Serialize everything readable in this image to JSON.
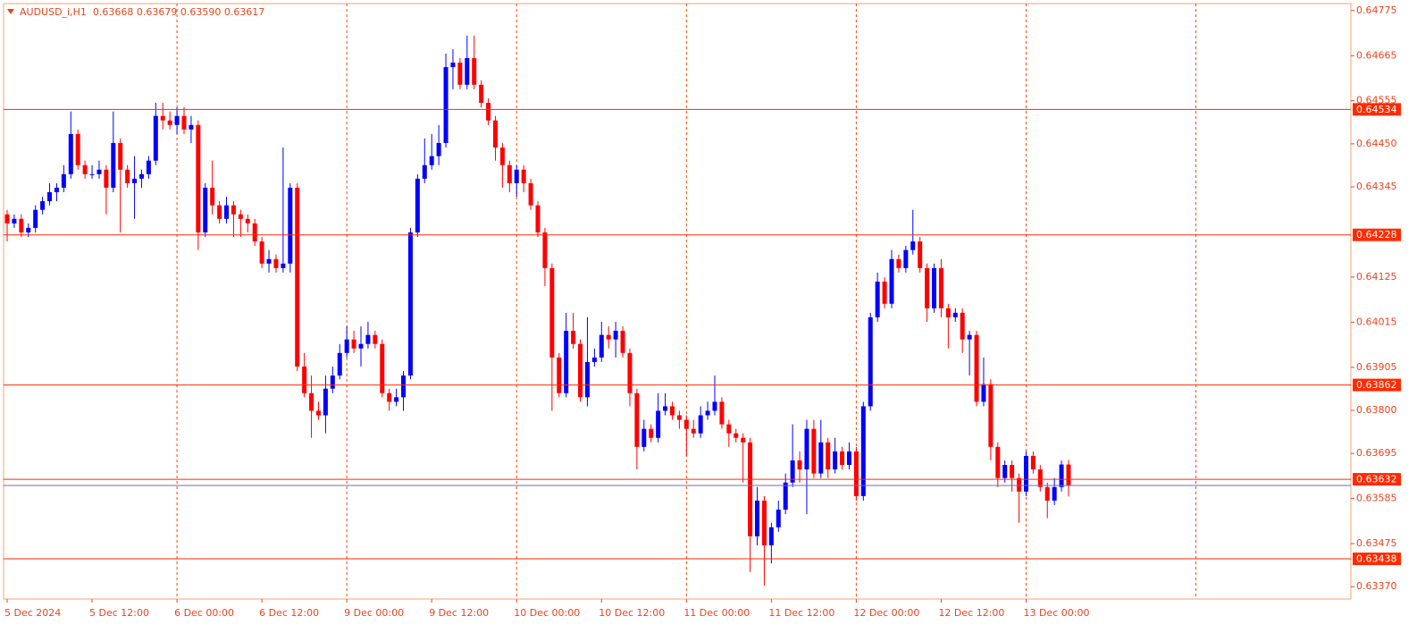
{
  "chart_data": {
    "type": "candlestick",
    "title": "AUDUSD_i,H1  0.63668 0.63679 0.63590 0.63617",
    "up_color": "#0000ff",
    "down_color": "#ff0000",
    "grid": true,
    "grid_color": "#ff4500",
    "level_color": "#ff2a00",
    "ylim": [
      0.6334,
      0.64792
    ],
    "yticks": [
      0.64775,
      0.64665,
      0.64555,
      {
        "value": 0.6445,
        "label": "0.64450"
      },
      0.64345,
      0.64125,
      0.64015,
      0.63905,
      {
        "value": 0.638,
        "label": "0.63800"
      },
      0.63695,
      0.63585,
      0.63475,
      {
        "value": 0.6337,
        "label": "0.63370"
      }
    ],
    "levels": [
      0.64534,
      0.64228,
      0.63862,
      0.63632,
      0.63438
    ],
    "categories": [
      "5 Dec 2024",
      null,
      null,
      null,
      null,
      null,
      null,
      null,
      null,
      null,
      null,
      null,
      "5 Dec 12:00",
      null,
      null,
      null,
      null,
      null,
      null,
      null,
      null,
      null,
      null,
      null,
      "6 Dec 00:00",
      null,
      null,
      null,
      null,
      null,
      null,
      null,
      null,
      null,
      null,
      null,
      "6 Dec 12:00",
      null,
      null,
      null,
      null,
      null,
      null,
      null,
      null,
      null,
      null,
      null,
      "9 Dec 00:00",
      null,
      null,
      null,
      null,
      null,
      null,
      null,
      null,
      null,
      null,
      null,
      "9 Dec 12:00",
      null,
      null,
      null,
      null,
      null,
      null,
      null,
      null,
      null,
      null,
      null,
      "10 Dec 00:00",
      null,
      null,
      null,
      null,
      null,
      null,
      null,
      null,
      null,
      null,
      null,
      "10 Dec 12:00",
      null,
      null,
      null,
      null,
      null,
      null,
      null,
      null,
      null,
      null,
      null,
      "11 Dec 00:00",
      null,
      null,
      null,
      null,
      null,
      null,
      null,
      null,
      null,
      null,
      null,
      "11 Dec 12:00",
      null,
      null,
      null,
      null,
      null,
      null,
      null,
      null,
      null,
      null,
      null,
      "12 Dec 00:00",
      null,
      null,
      null,
      null,
      null,
      null,
      null,
      null,
      null,
      null,
      null,
      "12 Dec 12:00",
      null,
      null,
      null,
      null,
      null,
      null,
      null,
      null,
      null,
      null,
      null,
      "13 Dec 00:00",
      null,
      null,
      null,
      null,
      null,
      null
    ],
    "candles": [
      [
        0.64278,
        0.64289,
        0.64212,
        0.64256
      ],
      [
        0.64256,
        0.64278,
        0.64245,
        0.64267
      ],
      [
        0.64267,
        0.64278,
        0.64223,
        0.64234
      ],
      [
        0.64234,
        0.64256,
        0.64223,
        0.64245
      ],
      [
        0.64245,
        0.643,
        0.64234,
        0.64289
      ],
      [
        0.64289,
        0.64321,
        0.64278,
        0.6431
      ],
      [
        0.6431,
        0.64354,
        0.643,
        0.64332
      ],
      [
        0.64332,
        0.64354,
        0.6431,
        0.64343
      ],
      [
        0.64343,
        0.64398,
        0.64332,
        0.64376
      ],
      [
        0.64376,
        0.64529,
        0.64365,
        0.64474
      ],
      [
        0.64474,
        0.64485,
        0.64387,
        0.64398
      ],
      [
        0.64398,
        0.64409,
        0.64365,
        0.64376
      ],
      [
        0.64376,
        0.64398,
        0.64365,
        0.64376
      ],
      [
        0.64376,
        0.64409,
        0.64365,
        0.64387
      ],
      [
        0.64387,
        0.64398,
        0.64278,
        0.64343
      ],
      [
        0.64343,
        0.64529,
        0.64332,
        0.64452
      ],
      [
        0.64452,
        0.64463,
        0.64234,
        0.64387
      ],
      [
        0.64387,
        0.64398,
        0.64343,
        0.64354
      ],
      [
        0.64354,
        0.6442,
        0.64267,
        0.64365
      ],
      [
        0.64365,
        0.64387,
        0.64343,
        0.64376
      ],
      [
        0.64376,
        0.6442,
        0.64365,
        0.64409
      ],
      [
        0.64409,
        0.6455,
        0.64398,
        0.64518
      ],
      [
        0.64518,
        0.6455,
        0.64485,
        0.64507
      ],
      [
        0.64507,
        0.64529,
        0.64485,
        0.64496
      ],
      [
        0.64496,
        0.64539,
        0.64474,
        0.64518
      ],
      [
        0.64518,
        0.64539,
        0.64474,
        0.64485
      ],
      [
        0.64485,
        0.64518,
        0.64452,
        0.64496
      ],
      [
        0.64496,
        0.64507,
        0.64191,
        0.64234
      ],
      [
        0.64234,
        0.64354,
        0.64223,
        0.64343
      ],
      [
        0.64343,
        0.64409,
        0.64278,
        0.643
      ],
      [
        0.643,
        0.6431,
        0.64256,
        0.64267
      ],
      [
        0.64267,
        0.64321,
        0.64256,
        0.643
      ],
      [
        0.643,
        0.6431,
        0.64223,
        0.64278
      ],
      [
        0.64278,
        0.64289,
        0.64223,
        0.64267
      ],
      [
        0.64267,
        0.64278,
        0.64234,
        0.64256
      ],
      [
        0.64256,
        0.64267,
        0.64201,
        0.64212
      ],
      [
        0.64212,
        0.64223,
        0.64147,
        0.64158
      ],
      [
        0.64158,
        0.64191,
        0.64136,
        0.64169
      ],
      [
        0.64169,
        0.6418,
        0.64136,
        0.64147
      ],
      [
        0.64147,
        0.64441,
        0.64136,
        0.64158
      ],
      [
        0.64158,
        0.64354,
        0.64136,
        0.64343
      ],
      [
        0.64343,
        0.64354,
        0.63896,
        0.63907
      ],
      [
        0.63907,
        0.6394,
        0.63832,
        0.63842
      ],
      [
        0.63842,
        0.63885,
        0.63733,
        0.63799
      ],
      [
        0.63799,
        0.63821,
        0.63777,
        0.63788
      ],
      [
        0.63788,
        0.63885,
        0.63744,
        0.63853
      ],
      [
        0.63853,
        0.63907,
        0.63842,
        0.63885
      ],
      [
        0.63885,
        0.63962,
        0.63876,
        0.6394
      ],
      [
        0.6394,
        0.64005,
        0.63929,
        0.63973
      ],
      [
        0.63973,
        0.63994,
        0.6394,
        0.63951
      ],
      [
        0.63951,
        0.64005,
        0.63907,
        0.63962
      ],
      [
        0.63962,
        0.64016,
        0.63951,
        0.63984
      ],
      [
        0.63984,
        0.63994,
        0.63951,
        0.63962
      ],
      [
        0.63962,
        0.63973,
        0.63832,
        0.63842
      ],
      [
        0.63842,
        0.63853,
        0.63799,
        0.63821
      ],
      [
        0.63821,
        0.63853,
        0.6381,
        0.63832
      ],
      [
        0.63832,
        0.63896,
        0.63799,
        0.63885
      ],
      [
        0.63885,
        0.64245,
        0.63876,
        0.64234
      ],
      [
        0.64234,
        0.64376,
        0.64223,
        0.64365
      ],
      [
        0.64365,
        0.64463,
        0.64354,
        0.64398
      ],
      [
        0.64398,
        0.64474,
        0.64387,
        0.6442
      ],
      [
        0.6442,
        0.64496,
        0.64398,
        0.64452
      ],
      [
        0.64452,
        0.6467,
        0.64441,
        0.64637
      ],
      [
        0.64637,
        0.64681,
        0.64583,
        0.64648
      ],
      [
        0.64648,
        0.64659,
        0.64583,
        0.64594
      ],
      [
        0.64594,
        0.64714,
        0.64583,
        0.64659
      ],
      [
        0.64659,
        0.64714,
        0.64583,
        0.64594
      ],
      [
        0.64594,
        0.64605,
        0.64539,
        0.6455
      ],
      [
        0.6455,
        0.64561,
        0.64496,
        0.64507
      ],
      [
        0.64507,
        0.64518,
        0.64409,
        0.64441
      ],
      [
        0.64441,
        0.64452,
        0.64343,
        0.64398
      ],
      [
        0.64398,
        0.64409,
        0.64332,
        0.64354
      ],
      [
        0.64354,
        0.64398,
        0.64321,
        0.64387
      ],
      [
        0.64387,
        0.64398,
        0.64332,
        0.64354
      ],
      [
        0.64354,
        0.64365,
        0.64289,
        0.643
      ],
      [
        0.643,
        0.6431,
        0.64223,
        0.64234
      ],
      [
        0.64234,
        0.64245,
        0.64103,
        0.64147
      ],
      [
        0.64147,
        0.64158,
        0.63799,
        0.63929
      ],
      [
        0.63929,
        0.6394,
        0.63832,
        0.63842
      ],
      [
        0.63842,
        0.64038,
        0.63832,
        0.63994
      ],
      [
        0.63994,
        0.64038,
        0.63951,
        0.63962
      ],
      [
        0.63962,
        0.63973,
        0.63821,
        0.63832
      ],
      [
        0.63832,
        0.64027,
        0.6381,
        0.63918
      ],
      [
        0.63918,
        0.63951,
        0.63907,
        0.63929
      ],
      [
        0.63929,
        0.64016,
        0.63918,
        0.63984
      ],
      [
        0.63984,
        0.64005,
        0.63951,
        0.63973
      ],
      [
        0.63973,
        0.64016,
        0.63929,
        0.63994
      ],
      [
        0.63994,
        0.64005,
        0.63929,
        0.6394
      ],
      [
        0.6394,
        0.63951,
        0.6381,
        0.63842
      ],
      [
        0.63842,
        0.63853,
        0.63656,
        0.63711
      ],
      [
        0.63711,
        0.63777,
        0.637,
        0.63755
      ],
      [
        0.63755,
        0.63766,
        0.63722,
        0.63733
      ],
      [
        0.63733,
        0.63842,
        0.63722,
        0.63799
      ],
      [
        0.63799,
        0.63842,
        0.63788,
        0.6381
      ],
      [
        0.6381,
        0.63821,
        0.63777,
        0.63788
      ],
      [
        0.63788,
        0.63799,
        0.63755,
        0.63777
      ],
      [
        0.63777,
        0.63788,
        0.63689,
        0.63755
      ],
      [
        0.63755,
        0.63777,
        0.63733,
        0.63744
      ],
      [
        0.63744,
        0.6381,
        0.63733,
        0.63788
      ],
      [
        0.63788,
        0.63821,
        0.63777,
        0.63799
      ],
      [
        0.63799,
        0.63885,
        0.63788,
        0.63821
      ],
      [
        0.63821,
        0.63832,
        0.63755,
        0.63766
      ],
      [
        0.63766,
        0.63777,
        0.63711,
        0.63744
      ],
      [
        0.63744,
        0.63755,
        0.63722,
        0.63733
      ],
      [
        0.63733,
        0.63744,
        0.63624,
        0.63722
      ],
      [
        0.63722,
        0.63733,
        0.63406,
        0.63493
      ],
      [
        0.63493,
        0.63613,
        0.63471,
        0.6358
      ],
      [
        0.6358,
        0.63591,
        0.63373,
        0.63471
      ],
      [
        0.63471,
        0.63526,
        0.63427,
        0.63515
      ],
      [
        0.63515,
        0.6358,
        0.63504,
        0.63558
      ],
      [
        0.63558,
        0.63646,
        0.63547,
        0.63624
      ],
      [
        0.63624,
        0.63766,
        0.63613,
        0.63678
      ],
      [
        0.63678,
        0.637,
        0.63624,
        0.63656
      ],
      [
        0.63656,
        0.63777,
        0.63547,
        0.63755
      ],
      [
        0.63755,
        0.63777,
        0.63635,
        0.63646
      ],
      [
        0.63646,
        0.63777,
        0.63635,
        0.63722
      ],
      [
        0.63722,
        0.63733,
        0.63635,
        0.63656
      ],
      [
        0.63656,
        0.63733,
        0.63646,
        0.637
      ],
      [
        0.637,
        0.63711,
        0.63656,
        0.63667
      ],
      [
        0.63667,
        0.63722,
        0.63656,
        0.637
      ],
      [
        0.637,
        0.63711,
        0.6358,
        0.63591
      ],
      [
        0.63591,
        0.63821,
        0.6358,
        0.6381
      ],
      [
        0.6381,
        0.64038,
        0.63799,
        0.64027
      ],
      [
        0.64027,
        0.64136,
        0.64016,
        0.64114
      ],
      [
        0.64114,
        0.64125,
        0.64049,
        0.6406
      ],
      [
        0.6406,
        0.64191,
        0.64049,
        0.64169
      ],
      [
        0.64169,
        0.6418,
        0.64136,
        0.64147
      ],
      [
        0.64147,
        0.64201,
        0.64136,
        0.64191
      ],
      [
        0.64191,
        0.64289,
        0.6418,
        0.64212
      ],
      [
        0.64212,
        0.64223,
        0.64136,
        0.64147
      ],
      [
        0.64147,
        0.64158,
        0.64016,
        0.64049
      ],
      [
        0.64049,
        0.64158,
        0.64038,
        0.64147
      ],
      [
        0.64147,
        0.64169,
        0.64027,
        0.64049
      ],
      [
        0.64049,
        0.6406,
        0.63951,
        0.64027
      ],
      [
        0.64027,
        0.64049,
        0.64016,
        0.64038
      ],
      [
        0.64038,
        0.64049,
        0.6394,
        0.63973
      ],
      [
        0.63973,
        0.63994,
        0.63885,
        0.63984
      ],
      [
        0.63984,
        0.63994,
        0.6381,
        0.63821
      ],
      [
        0.63821,
        0.63929,
        0.6381,
        0.63864
      ],
      [
        0.63864,
        0.63876,
        0.63678,
        0.63711
      ],
      [
        0.63711,
        0.63722,
        0.63613,
        0.63635
      ],
      [
        0.63635,
        0.63678,
        0.63624,
        0.63667
      ],
      [
        0.63667,
        0.63678,
        0.63602,
        0.63635
      ],
      [
        0.63635,
        0.63646,
        0.63526,
        0.63602
      ],
      [
        0.63602,
        0.637,
        0.63591,
        0.63689
      ],
      [
        0.63689,
        0.637,
        0.63646,
        0.63656
      ],
      [
        0.63656,
        0.63667,
        0.63602,
        0.63613
      ],
      [
        0.63613,
        0.63624,
        0.63537,
        0.6358
      ],
      [
        0.6358,
        0.63635,
        0.63569,
        0.63613
      ],
      [
        0.63613,
        0.63678,
        0.63602,
        0.63668
      ],
      [
        0.63668,
        0.63679,
        0.6359,
        0.63617
      ]
    ]
  }
}
